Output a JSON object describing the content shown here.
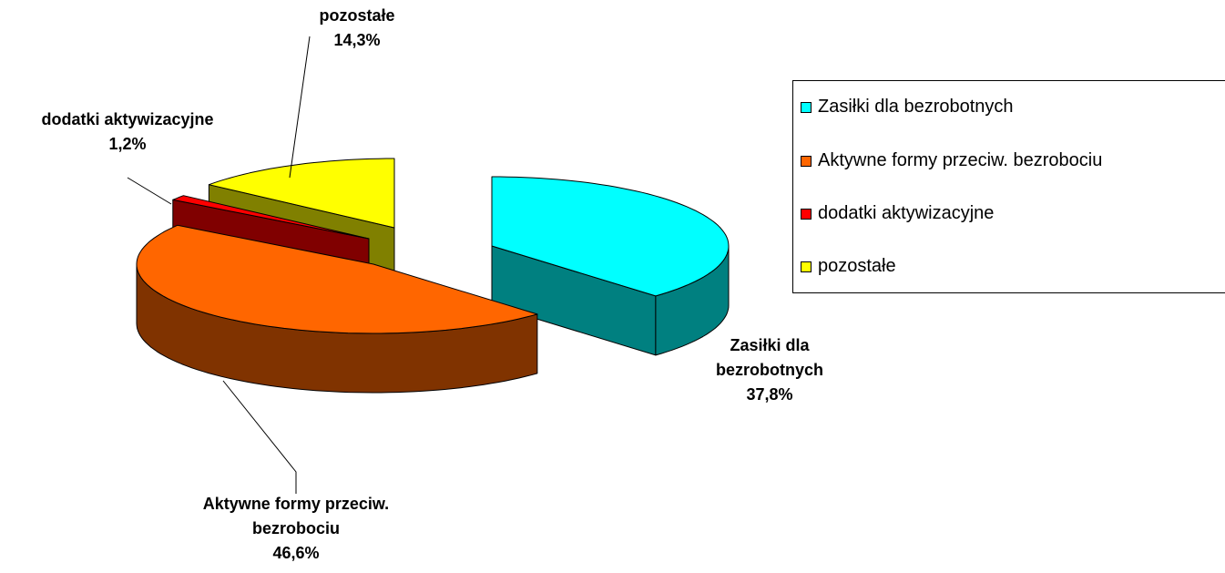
{
  "chart_data": {
    "type": "pie",
    "categories": [
      "Zasiłki dla bezrobotnych",
      "Aktywne formy przeciw. bezrobociu",
      "dodatki aktywizacyjne",
      "pozostałe"
    ],
    "values": [
      37.8,
      46.6,
      1.2,
      14.3
    ],
    "value_labels": [
      "37,8%",
      "46,6%",
      "1,2%",
      "14,3%"
    ],
    "colors": [
      "#00ffff",
      "#ff6600",
      "#ff0000",
      "#ffff00"
    ],
    "legend": "right"
  }
}
